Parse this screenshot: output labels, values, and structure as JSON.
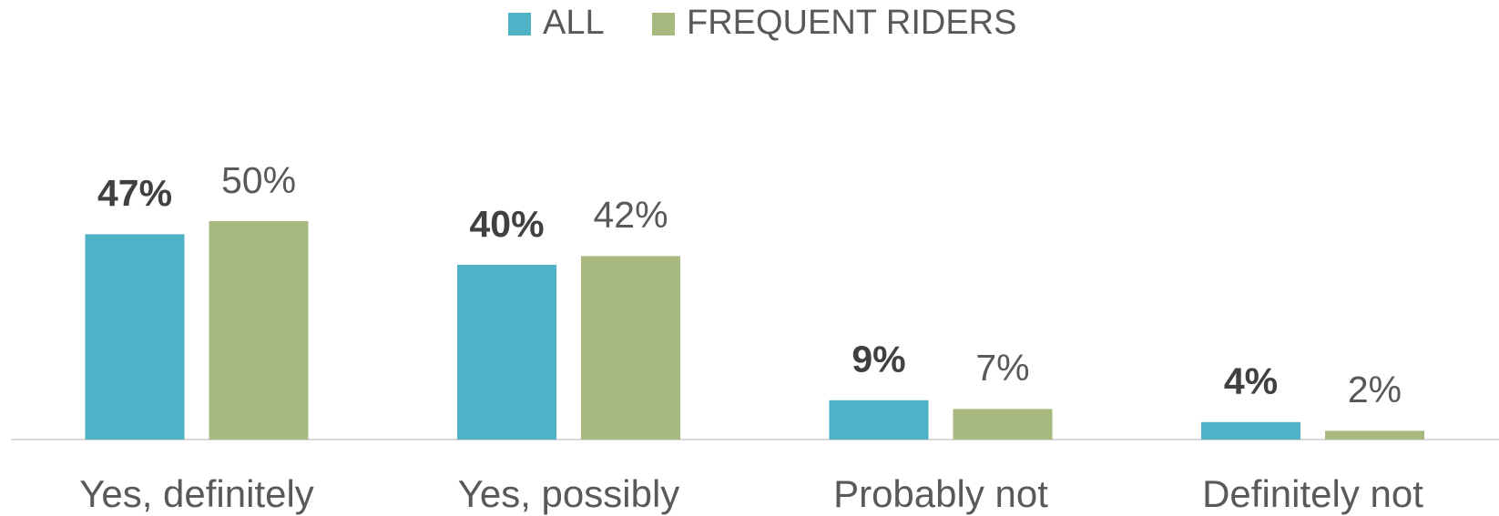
{
  "chart_data": {
    "type": "bar",
    "legend": "top",
    "categories": [
      "Yes, definitely",
      "Yes, possibly",
      "Probably not",
      "Definitely not"
    ],
    "series": [
      {
        "name": "ALL",
        "color": "#4fb3c8",
        "values": [
          47,
          40,
          9,
          4
        ],
        "value_labels": [
          "47%",
          "40%",
          "9%",
          "4%"
        ]
      },
      {
        "name": "FREQUENT RIDERS",
        "color": "#a8b97f",
        "values": [
          50,
          42,
          7,
          2
        ],
        "value_labels": [
          "50%",
          "42%",
          "7%",
          "2%"
        ]
      }
    ]
  }
}
